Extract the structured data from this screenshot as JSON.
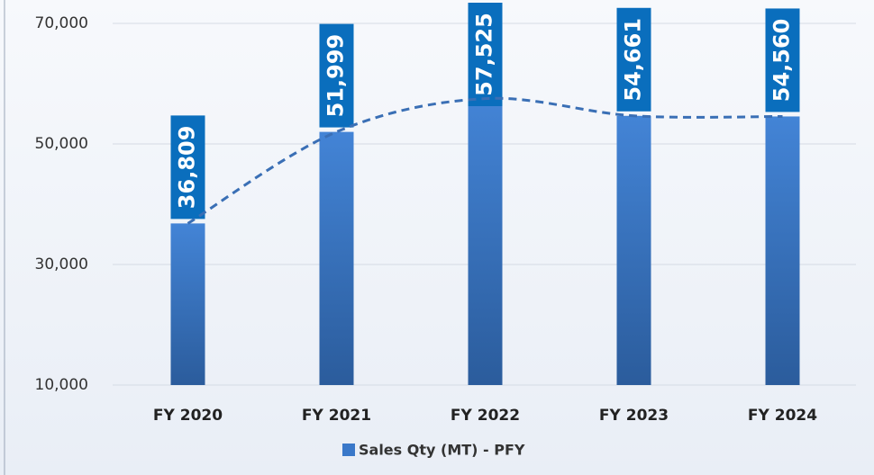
{
  "chart_data": {
    "type": "bar",
    "categories": [
      "FY 2020",
      "FY 2021",
      "FY 2022",
      "FY 2023",
      "FY 2024"
    ],
    "series": [
      {
        "name": "Sales Qty (MT) - PFY",
        "color": "#3a78c9",
        "values": [
          36809,
          51999,
          57525,
          54661,
          54560
        ],
        "value_labels": [
          "36,809",
          "51,999",
          "57,525",
          "54,661",
          "54,560"
        ]
      }
    ],
    "ylim": [
      10000,
      70000
    ],
    "yticks": [
      {
        "value": 10000,
        "label": "10,000"
      },
      {
        "value": 30000,
        "label": "30,000"
      },
      {
        "value": 50000,
        "label": "50,000"
      },
      {
        "value": 70000,
        "label": "70,000"
      }
    ],
    "grid": true,
    "legend": "bottom",
    "label_color": "#0a6ebd",
    "trendline": true
  }
}
